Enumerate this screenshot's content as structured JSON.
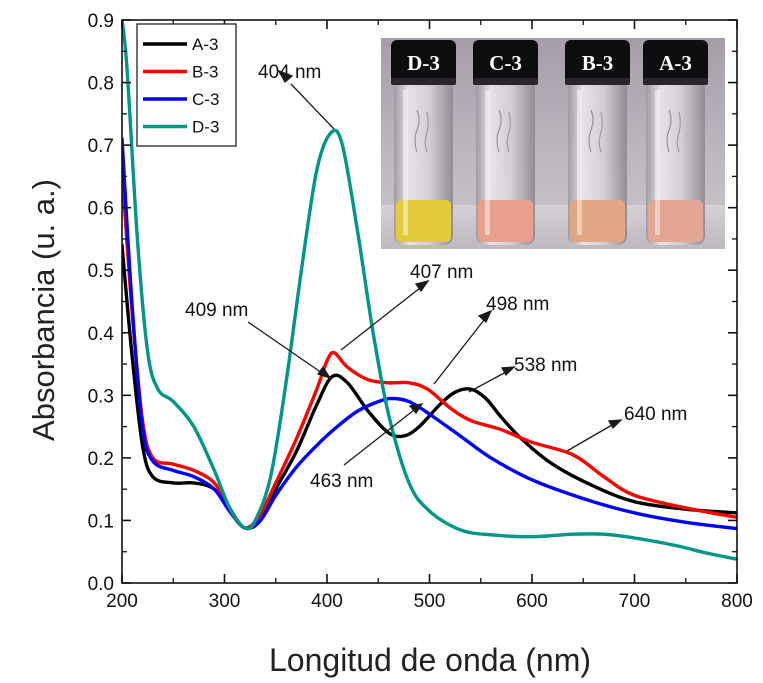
{
  "chart_data": {
    "type": "line",
    "xlabel": "Longitud de onda (nm)",
    "ylabel": "Absorbancia (u. a.)",
    "xlim": [
      200,
      800
    ],
    "ylim": [
      0.0,
      0.9
    ],
    "x_ticks": [
      "200",
      "300",
      "400",
      "500",
      "600",
      "700",
      "800"
    ],
    "y_ticks": [
      "0.0",
      "0.1",
      "0.2",
      "0.3",
      "0.4",
      "0.5",
      "0.6",
      "0.7",
      "0.8",
      "0.9"
    ],
    "grid": false,
    "legend_position": "top-left",
    "series": [
      {
        "name": "A-3",
        "color": "#000000",
        "points": [
          [
            200,
            0.54
          ],
          [
            210,
            0.36
          ],
          [
            220,
            0.22
          ],
          [
            230,
            0.17
          ],
          [
            250,
            0.16
          ],
          [
            270,
            0.16
          ],
          [
            290,
            0.15
          ],
          [
            305,
            0.115
          ],
          [
            320,
            0.088
          ],
          [
            335,
            0.1
          ],
          [
            350,
            0.15
          ],
          [
            370,
            0.21
          ],
          [
            390,
            0.285
          ],
          [
            405,
            0.33
          ],
          [
            420,
            0.32
          ],
          [
            440,
            0.275
          ],
          [
            460,
            0.24
          ],
          [
            475,
            0.235
          ],
          [
            490,
            0.25
          ],
          [
            510,
            0.285
          ],
          [
            525,
            0.305
          ],
          [
            540,
            0.31
          ],
          [
            555,
            0.295
          ],
          [
            570,
            0.265
          ],
          [
            590,
            0.23
          ],
          [
            620,
            0.19
          ],
          [
            660,
            0.155
          ],
          [
            700,
            0.13
          ],
          [
            750,
            0.118
          ],
          [
            800,
            0.112
          ]
        ]
      },
      {
        "name": "B-3",
        "color": "#ff0000",
        "points": [
          [
            200,
            0.66
          ],
          [
            210,
            0.43
          ],
          [
            220,
            0.26
          ],
          [
            230,
            0.2
          ],
          [
            250,
            0.19
          ],
          [
            270,
            0.18
          ],
          [
            290,
            0.16
          ],
          [
            305,
            0.12
          ],
          [
            320,
            0.088
          ],
          [
            335,
            0.11
          ],
          [
            350,
            0.16
          ],
          [
            370,
            0.23
          ],
          [
            390,
            0.31
          ],
          [
            400,
            0.355
          ],
          [
            407,
            0.368
          ],
          [
            420,
            0.345
          ],
          [
            440,
            0.325
          ],
          [
            460,
            0.32
          ],
          [
            480,
            0.32
          ],
          [
            498,
            0.31
          ],
          [
            520,
            0.28
          ],
          [
            540,
            0.26
          ],
          [
            570,
            0.245
          ],
          [
            600,
            0.225
          ],
          [
            640,
            0.205
          ],
          [
            670,
            0.17
          ],
          [
            700,
            0.14
          ],
          [
            750,
            0.12
          ],
          [
            800,
            0.105
          ]
        ]
      },
      {
        "name": "C-3",
        "color": "#0000ff",
        "points": [
          [
            200,
            0.71
          ],
          [
            210,
            0.44
          ],
          [
            220,
            0.25
          ],
          [
            230,
            0.195
          ],
          [
            250,
            0.18
          ],
          [
            270,
            0.17
          ],
          [
            290,
            0.15
          ],
          [
            305,
            0.115
          ],
          [
            320,
            0.088
          ],
          [
            335,
            0.1
          ],
          [
            350,
            0.14
          ],
          [
            370,
            0.185
          ],
          [
            390,
            0.22
          ],
          [
            410,
            0.25
          ],
          [
            430,
            0.275
          ],
          [
            450,
            0.29
          ],
          [
            463,
            0.295
          ],
          [
            480,
            0.29
          ],
          [
            500,
            0.27
          ],
          [
            530,
            0.235
          ],
          [
            560,
            0.2
          ],
          [
            600,
            0.165
          ],
          [
            650,
            0.135
          ],
          [
            700,
            0.112
          ],
          [
            750,
            0.097
          ],
          [
            800,
            0.087
          ]
        ]
      },
      {
        "name": "D-3",
        "color": "#009688",
        "points": [
          [
            200,
            0.9
          ],
          [
            205,
            0.82
          ],
          [
            215,
            0.55
          ],
          [
            225,
            0.37
          ],
          [
            235,
            0.31
          ],
          [
            250,
            0.29
          ],
          [
            270,
            0.25
          ],
          [
            290,
            0.18
          ],
          [
            305,
            0.12
          ],
          [
            320,
            0.088
          ],
          [
            330,
            0.1
          ],
          [
            345,
            0.17
          ],
          [
            360,
            0.32
          ],
          [
            375,
            0.5
          ],
          [
            390,
            0.66
          ],
          [
            404,
            0.72
          ],
          [
            415,
            0.7
          ],
          [
            430,
            0.56
          ],
          [
            445,
            0.4
          ],
          [
            460,
            0.27
          ],
          [
            480,
            0.16
          ],
          [
            500,
            0.115
          ],
          [
            530,
            0.085
          ],
          [
            560,
            0.077
          ],
          [
            600,
            0.074
          ],
          [
            640,
            0.078
          ],
          [
            670,
            0.078
          ],
          [
            700,
            0.072
          ],
          [
            740,
            0.06
          ],
          [
            770,
            0.048
          ],
          [
            800,
            0.038
          ]
        ]
      }
    ],
    "annotations": [
      "404 nm",
      "407 nm",
      "409 nm",
      "498 nm",
      "538 nm",
      "463 nm",
      "640 nm"
    ]
  },
  "inset": {
    "vials": [
      {
        "label": "D-3",
        "liquid": "#e2cc3c"
      },
      {
        "label": "C-3",
        "liquid": "#e8a08e"
      },
      {
        "label": "B-3",
        "liquid": "#e2a684"
      },
      {
        "label": "A-3",
        "liquid": "#e3a594"
      }
    ]
  }
}
